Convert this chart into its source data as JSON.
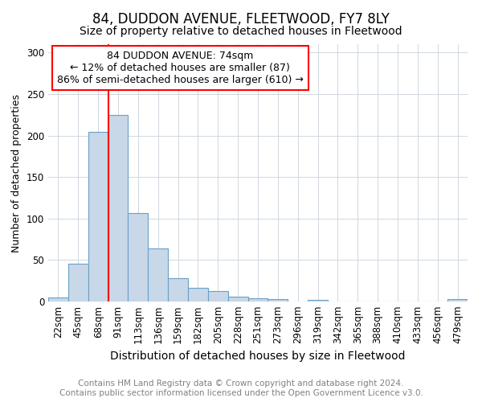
{
  "title1": "84, DUDDON AVENUE, FLEETWOOD, FY7 8LY",
  "title2": "Size of property relative to detached houses in Fleetwood",
  "xlabel": "Distribution of detached houses by size in Fleetwood",
  "ylabel": "Number of detached properties",
  "categories": [
    "22sqm",
    "45sqm",
    "68sqm",
    "91sqm",
    "113sqm",
    "136sqm",
    "159sqm",
    "182sqm",
    "205sqm",
    "228sqm",
    "251sqm",
    "273sqm",
    "296sqm",
    "319sqm",
    "342sqm",
    "365sqm",
    "388sqm",
    "410sqm",
    "433sqm",
    "456sqm",
    "479sqm"
  ],
  "values": [
    5,
    46,
    204,
    225,
    107,
    64,
    28,
    16,
    13,
    6,
    4,
    3,
    0,
    2,
    0,
    0,
    0,
    0,
    0,
    0,
    3
  ],
  "bar_color": "#c8d8e8",
  "bar_edge_color": "#6aa0c8",
  "annotation_line1": "84 DUDDON AVENUE: 74sqm",
  "annotation_line2": "← 12% of detached houses are smaller (87)",
  "annotation_line3": "86% of semi-detached houses are larger (610) →",
  "annotation_box_color": "white",
  "annotation_box_edge": "red",
  "vline_color": "red",
  "footer1": "Contains HM Land Registry data © Crown copyright and database right 2024.",
  "footer2": "Contains public sector information licensed under the Open Government Licence v3.0.",
  "ylim": [
    0,
    310
  ],
  "yticks": [
    0,
    50,
    100,
    150,
    200,
    250,
    300
  ],
  "title1_fontsize": 12,
  "title2_fontsize": 10,
  "xlabel_fontsize": 10,
  "ylabel_fontsize": 9,
  "tick_fontsize": 8.5,
  "footer_fontsize": 7.5,
  "annotation_fontsize": 9
}
